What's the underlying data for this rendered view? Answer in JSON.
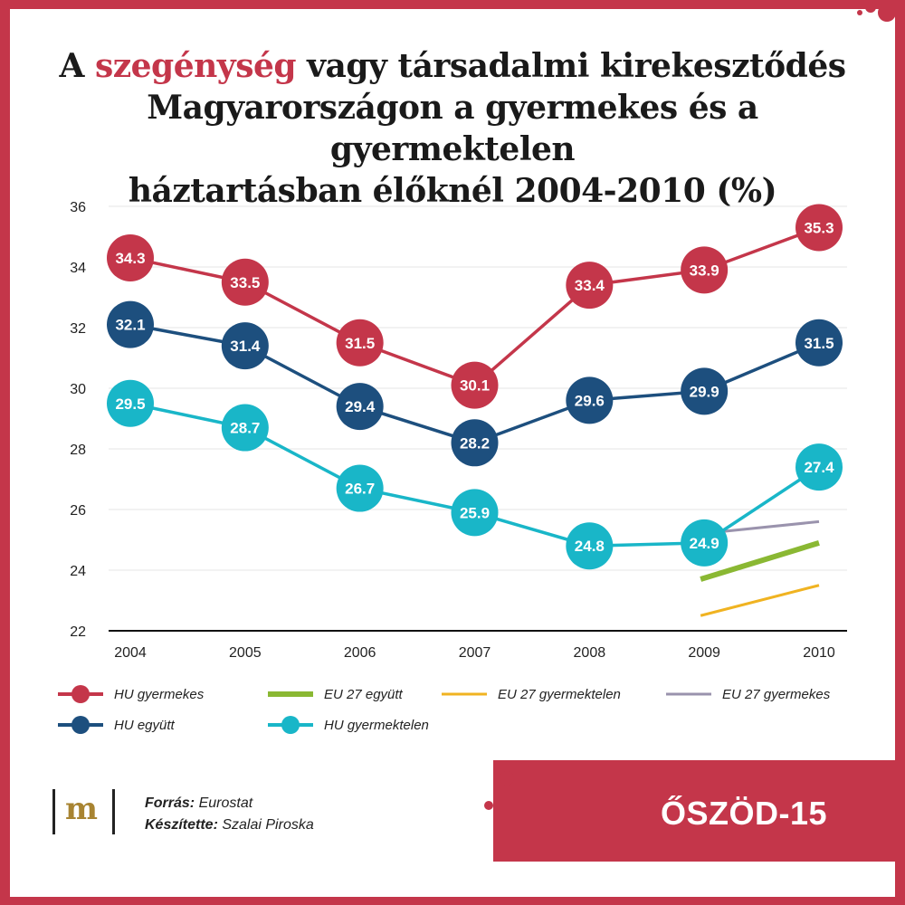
{
  "title": {
    "part1": "A ",
    "highlight": "szegénység",
    "part2": " vagy társadalmi kirekesztődés",
    "line2": "Magyarországon a gyermekes és a gyermektelen",
    "line3": "háztartásban élőknél 2004-2010 (%)"
  },
  "legend": [
    {
      "label": "HU gyermekes",
      "kind": "dot",
      "color": "#c4364a"
    },
    {
      "label": "EU 27 együtt",
      "kind": "line",
      "color": "#8ab833"
    },
    {
      "label": "EU 27 gyermektelen",
      "kind": "line",
      "color": "#f0b321"
    },
    {
      "label": "EU 27 gyermekes",
      "kind": "line",
      "color": "#9a93ad"
    },
    {
      "label": "HU együtt",
      "kind": "dot",
      "color": "#1d4f7e"
    },
    {
      "label": "HU gyermektelen",
      "kind": "dot",
      "color": "#19b6c8"
    }
  ],
  "chart_data": {
    "type": "line",
    "x": [
      2004,
      2005,
      2006,
      2007,
      2008,
      2009,
      2010
    ],
    "ylim": [
      22,
      36
    ],
    "yticks": [
      22,
      24,
      26,
      28,
      30,
      32,
      34,
      36
    ],
    "grid": true,
    "series": [
      {
        "name": "HU gyermekes",
        "color": "#c4364a",
        "style": "marker",
        "values": [
          34.3,
          33.5,
          31.5,
          30.1,
          33.4,
          33.9,
          35.3
        ]
      },
      {
        "name": "HU együtt",
        "color": "#1d4f7e",
        "style": "marker",
        "values": [
          32.1,
          31.4,
          29.4,
          28.2,
          29.6,
          29.9,
          31.5
        ]
      },
      {
        "name": "HU gyermektelen",
        "color": "#19b6c8",
        "style": "marker",
        "values": [
          29.5,
          28.7,
          26.7,
          25.9,
          24.8,
          24.9,
          27.4
        ]
      },
      {
        "name": "EU 27 gyermekes",
        "color": "#9a93ad",
        "style": "line",
        "x": [
          2009,
          2010
        ],
        "values": [
          25.2,
          25.6
        ]
      },
      {
        "name": "EU 27 együtt",
        "color": "#8ab833",
        "style": "line",
        "x": [
          2009,
          2010
        ],
        "values": [
          23.7,
          24.9
        ]
      },
      {
        "name": "EU 27 gyermektelen",
        "color": "#f0b321",
        "style": "line",
        "x": [
          2009,
          2010
        ],
        "values": [
          22.5,
          23.5
        ]
      }
    ]
  },
  "footer": {
    "source_label": "Forrás:",
    "source_value": "Eurostat",
    "author_label": "Készítette:",
    "author_value": "Szalai Piroska",
    "brand": "ŐSZÖD-15",
    "logo_letter": "m"
  }
}
